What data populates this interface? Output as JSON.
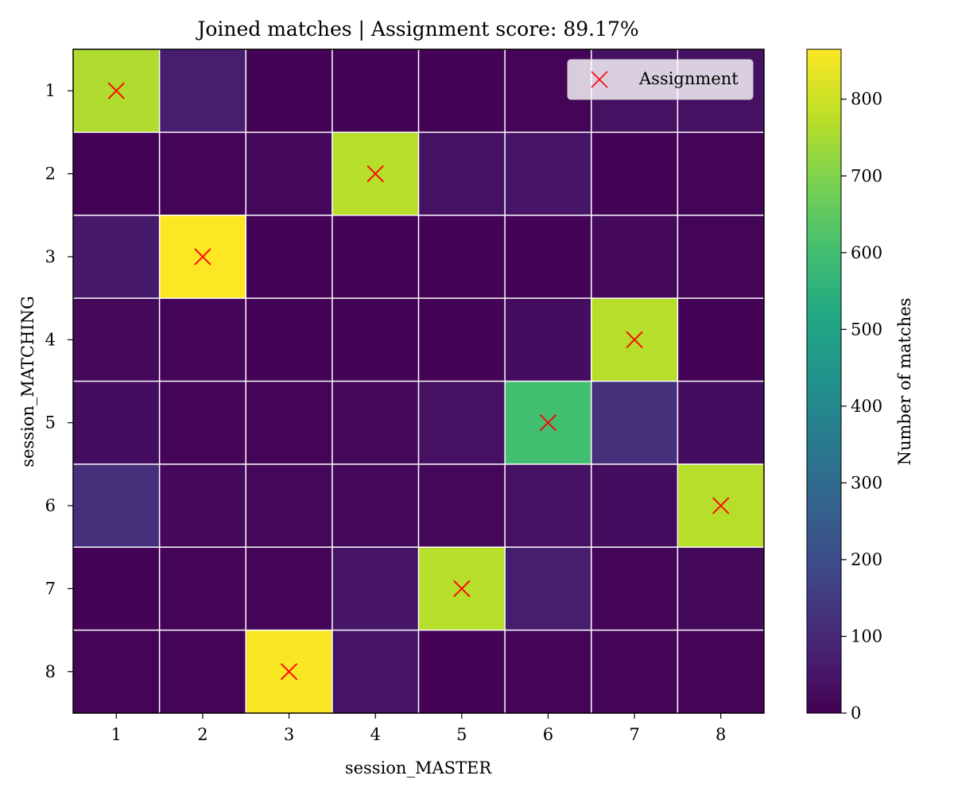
{
  "chart_data": {
    "type": "heatmap",
    "title": "Joined matches | Assignment score: 89.17%",
    "xlabel": "session_MASTER",
    "ylabel": "session_MATCHING",
    "x_categories": [
      "1",
      "2",
      "3",
      "4",
      "5",
      "6",
      "7",
      "8"
    ],
    "y_categories": [
      "1",
      "2",
      "3",
      "4",
      "5",
      "6",
      "7",
      "8"
    ],
    "values": [
      [
        760,
        70,
        5,
        5,
        5,
        10,
        40,
        40
      ],
      [
        5,
        10,
        20,
        770,
        40,
        50,
        5,
        10
      ],
      [
        60,
        865,
        5,
        5,
        5,
        5,
        20,
        10
      ],
      [
        20,
        10,
        5,
        5,
        5,
        30,
        770,
        5
      ],
      [
        30,
        10,
        10,
        20,
        40,
        600,
        120,
        30
      ],
      [
        120,
        20,
        15,
        20,
        15,
        40,
        30,
        770
      ],
      [
        5,
        10,
        10,
        50,
        770,
        70,
        10,
        20
      ],
      [
        10,
        10,
        860,
        50,
        5,
        10,
        10,
        10
      ]
    ],
    "assignment": [
      {
        "x": 1,
        "y": 1
      },
      {
        "x": 4,
        "y": 2
      },
      {
        "x": 2,
        "y": 3
      },
      {
        "x": 7,
        "y": 4
      },
      {
        "x": 6,
        "y": 5
      },
      {
        "x": 8,
        "y": 6
      },
      {
        "x": 5,
        "y": 7
      },
      {
        "x": 3,
        "y": 8
      }
    ],
    "colorbar": {
      "label": "Number of matches",
      "min": 0,
      "max": 865,
      "ticks": [
        "0",
        "100",
        "200",
        "300",
        "400",
        "500",
        "600",
        "700",
        "800"
      ],
      "colormap": "viridis"
    },
    "legend": {
      "entries": [
        {
          "label": "Assignment",
          "marker": "x",
          "color": "#ff0000"
        }
      ],
      "placement": "top-right"
    },
    "marker_color": "#ff0000",
    "grid_color": "#ffffff"
  }
}
